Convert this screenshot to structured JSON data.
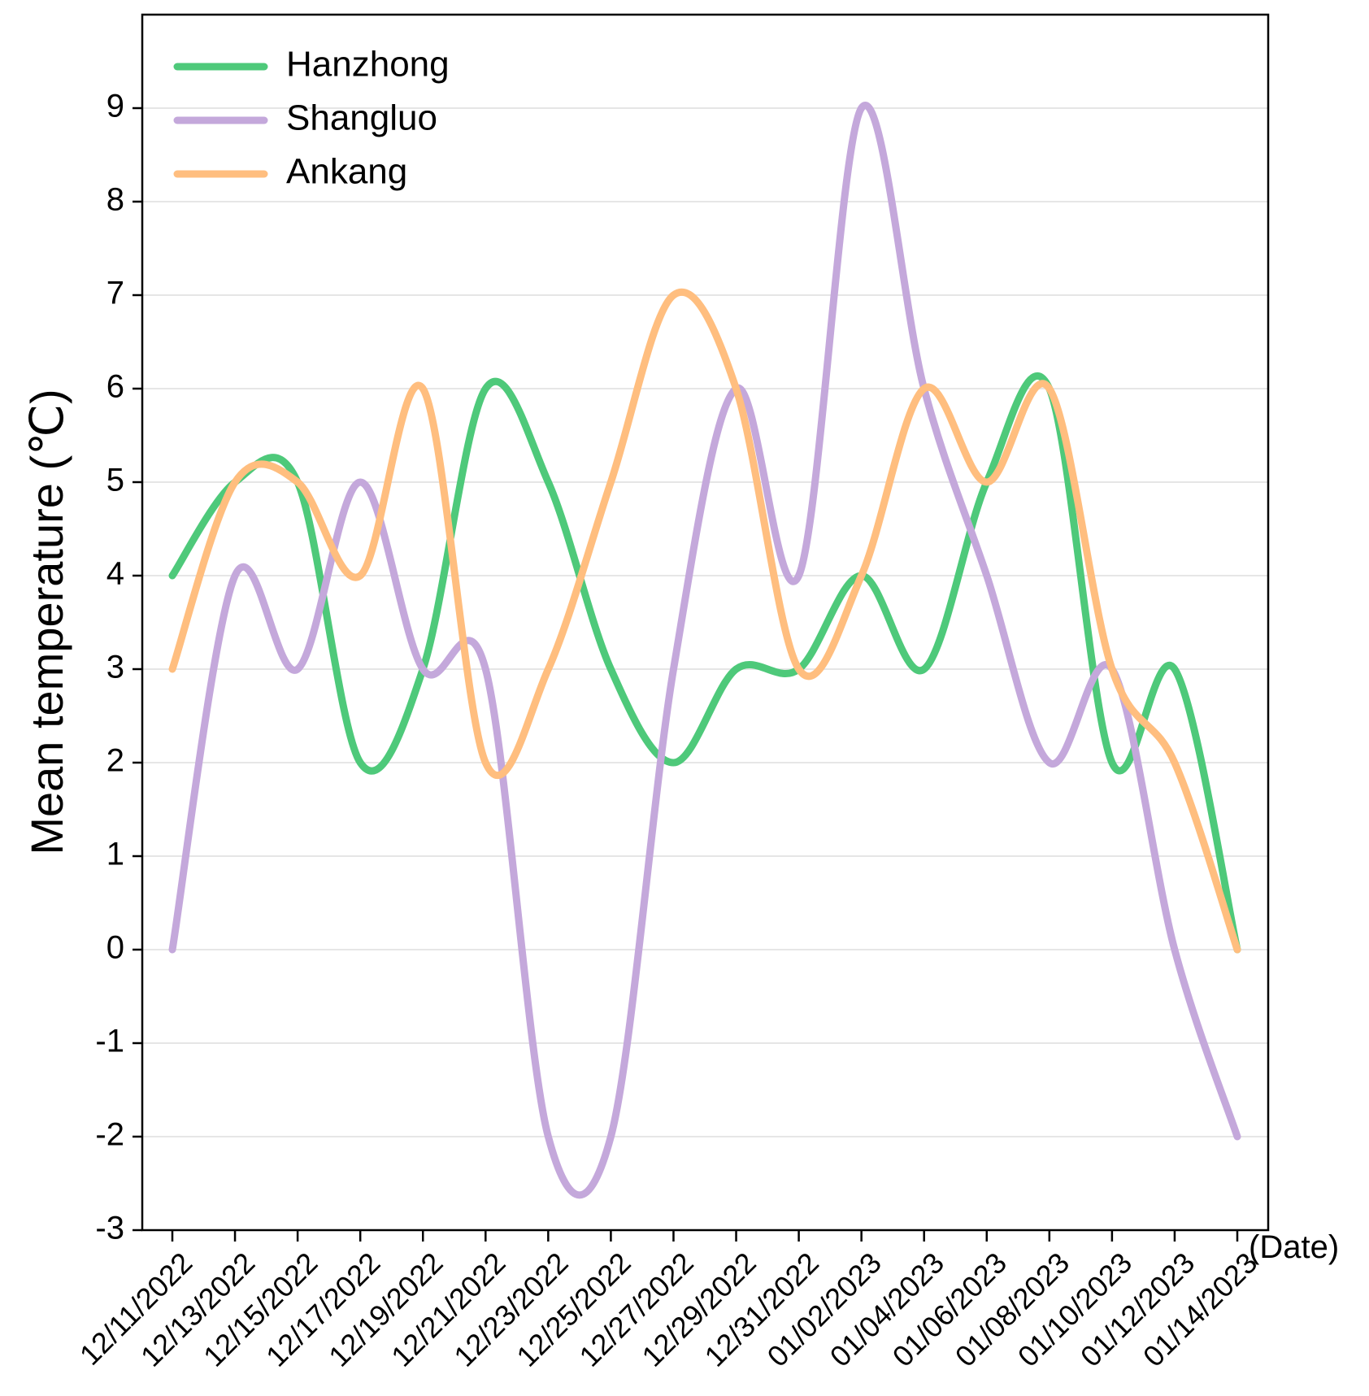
{
  "chart_data": {
    "type": "line",
    "title": "",
    "xlabel": "(Date)",
    "ylabel": "Mean temperature (℃)",
    "ylim": [
      -3,
      10
    ],
    "yticks": [
      "-3",
      "-2",
      "-1",
      "0",
      "1",
      "2",
      "3",
      "4",
      "5",
      "6",
      "7",
      "8",
      "9"
    ],
    "grid": "horizontal",
    "legend_position": "top-left",
    "categories": [
      "12/11/2022",
      "12/13/2022",
      "12/15/2022",
      "12/17/2022",
      "12/19/2022",
      "12/21/2022",
      "12/23/2022",
      "12/25/2022",
      "12/27/2022",
      "12/29/2022",
      "12/31/2022",
      "01/02/2023",
      "01/04/2023",
      "01/06/2023",
      "01/08/2023",
      "01/10/2023",
      "01/12/2023",
      "01/14/2023"
    ],
    "series": [
      {
        "name": "Hanzhong",
        "color": "#4ec97a",
        "values": [
          4,
          5,
          5,
          2,
          3,
          6,
          5,
          3,
          2,
          3,
          3,
          4,
          3,
          5,
          6,
          2,
          3,
          0
        ]
      },
      {
        "name": "Shangluo",
        "color": "#c4a8db",
        "values": [
          0,
          4,
          3,
          5,
          3,
          3,
          -2,
          -2,
          3,
          6,
          4,
          9,
          6,
          4,
          2,
          3,
          0,
          -2
        ]
      },
      {
        "name": "Ankang",
        "color": "#ffbe7f",
        "values": [
          3,
          5,
          5,
          4,
          6,
          2,
          3,
          5,
          7,
          6,
          3,
          4,
          6,
          5,
          6,
          3,
          2,
          0
        ]
      }
    ]
  }
}
